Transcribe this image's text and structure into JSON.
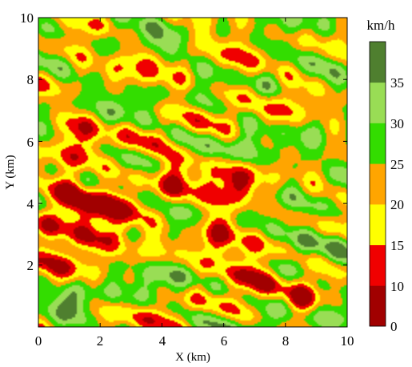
{
  "chart_data": {
    "type": "heatmap",
    "title": "",
    "xlabel": "X (km)",
    "ylabel": "Y (km)",
    "xlim": [
      0,
      10
    ],
    "ylim": [
      0,
      10
    ],
    "x_ticks": [
      "0",
      "2",
      "4",
      "6",
      "8",
      "10"
    ],
    "y_ticks": [
      "2",
      "4",
      "6",
      "8",
      "10"
    ],
    "colorbar": {
      "unit_label": "km/h",
      "ticks": [
        "0",
        "10",
        "15",
        "20",
        "25",
        "30",
        "35"
      ],
      "bins": [
        {
          "from": 0,
          "to": 10,
          "color": "#a10000"
        },
        {
          "from": 10,
          "to": 15,
          "color": "#f00000"
        },
        {
          "from": 15,
          "to": 20,
          "color": "#ffff00"
        },
        {
          "from": 20,
          "to": 25,
          "color": "#ffa500"
        },
        {
          "from": 25,
          "to": 30,
          "color": "#33dd00"
        },
        {
          "from": 30,
          "to": 35,
          "color": "#99dd55"
        },
        {
          "from": 35,
          "to": 40,
          "color": "#4f7f2f"
        }
      ]
    },
    "field_features": [
      {
        "x": 0.8,
        "y": 2.8,
        "value": 11,
        "spread": 1.2
      },
      {
        "x": 1.5,
        "y": 4.6,
        "value": 12,
        "spread": 0.9
      },
      {
        "x": 1.3,
        "y": 6.6,
        "value": 12,
        "spread": 0.6
      },
      {
        "x": 2.8,
        "y": 3.8,
        "value": 13,
        "spread": 0.8
      },
      {
        "x": 4.2,
        "y": 4.9,
        "value": 12,
        "spread": 0.7
      },
      {
        "x": 6.3,
        "y": 4.6,
        "value": 13,
        "spread": 0.8
      },
      {
        "x": 6.5,
        "y": 1.8,
        "value": 13,
        "spread": 0.9
      },
      {
        "x": 8.6,
        "y": 0.8,
        "value": 12,
        "spread": 0.5
      },
      {
        "x": 5.6,
        "y": 3.0,
        "value": 14,
        "spread": 0.7
      },
      {
        "x": 6.2,
        "y": 8.6,
        "value": 18,
        "spread": 1.0
      },
      {
        "x": 4.0,
        "y": 8.7,
        "value": 20,
        "spread": 0.7
      },
      {
        "x": 2.2,
        "y": 3.3,
        "value": 19,
        "spread": 0.6
      },
      {
        "x": 1.0,
        "y": 9.2,
        "value": 21,
        "spread": 0.8
      },
      {
        "x": 8.5,
        "y": 3.0,
        "value": 26,
        "spread": 1.1
      },
      {
        "x": 3.5,
        "y": 9.5,
        "value": 31,
        "spread": 0.6
      },
      {
        "x": 9.4,
        "y": 5.5,
        "value": 31,
        "spread": 0.7
      },
      {
        "x": 7.4,
        "y": 9.4,
        "value": 31,
        "spread": 0.6
      },
      {
        "x": 1.0,
        "y": 0.8,
        "value": 32,
        "spread": 0.7
      },
      {
        "x": 3.3,
        "y": 1.2,
        "value": 30,
        "spread": 0.7
      }
    ]
  }
}
